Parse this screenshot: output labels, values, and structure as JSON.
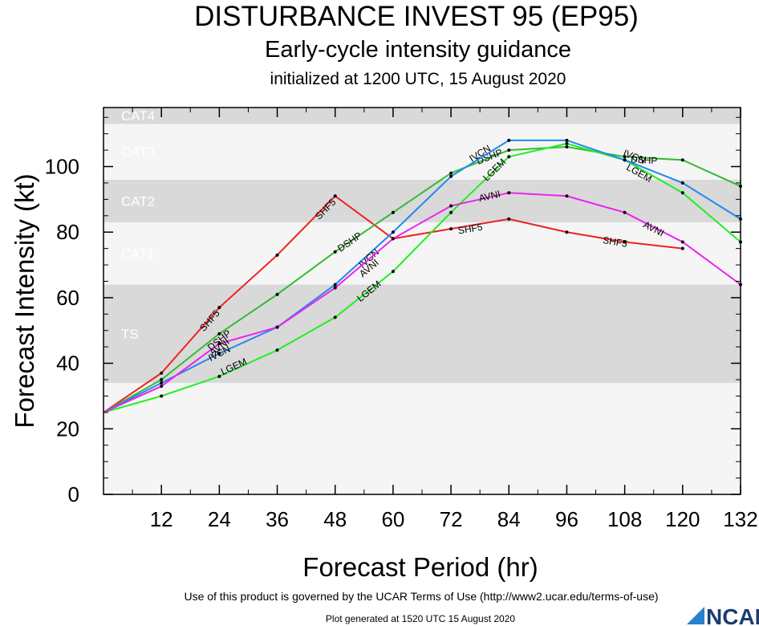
{
  "title": "DISTURBANCE INVEST 95 (EP95)",
  "subtitle": "Early-cycle intensity guidance",
  "subtitle2": "initialized at 1200 UTC, 15 August 2020",
  "footer_terms": "Use of this product is governed by the UCAR Terms of Use (http://www2.ucar.edu/terms-of-use)",
  "footer_generated": "Plot generated at 1520 UTC   15 August 2020",
  "logo_text": "NCAR",
  "chart_data": {
    "type": "line",
    "xlabel": "Forecast Period (hr)",
    "ylabel": "Forecast Intensity (kt)",
    "xlim": [
      0,
      132
    ],
    "ylim": [
      0,
      118
    ],
    "xticks": [
      12,
      24,
      36,
      48,
      60,
      72,
      84,
      96,
      108,
      120,
      132
    ],
    "yticks": [
      0,
      20,
      40,
      60,
      80,
      100
    ],
    "grid": false,
    "bands": [
      {
        "label": "TS",
        "ymin": 34,
        "ymax": 64,
        "color": "#d9d9d9"
      },
      {
        "label": "CAT1",
        "ymin": 64,
        "ymax": 83,
        "color": "#f5f5f5"
      },
      {
        "label": "CAT2",
        "ymin": 83,
        "ymax": 96,
        "color": "#d9d9d9"
      },
      {
        "label": "CAT3",
        "ymin": 96,
        "ymax": 113,
        "color": "#f5f5f5"
      },
      {
        "label": "CAT4",
        "ymin": 113,
        "ymax": 118,
        "color": "#d9d9d9"
      }
    ],
    "below_band_color": "#f5f5f5",
    "series": [
      {
        "name": "SHF5",
        "color": "#ee2222",
        "points": [
          [
            0,
            25
          ],
          [
            12,
            37
          ],
          [
            24,
            57
          ],
          [
            36,
            73
          ],
          [
            48,
            91
          ],
          [
            60,
            78
          ],
          [
            72,
            81
          ],
          [
            84,
            84
          ],
          [
            96,
            80
          ],
          [
            108,
            77
          ],
          [
            120,
            75
          ]
        ],
        "labels": [
          [
            22,
            53
          ],
          [
            46,
            87
          ],
          [
            76,
            81
          ],
          [
            106,
            77
          ]
        ]
      },
      {
        "name": "DSHP",
        "color": "#33bb33",
        "points": [
          [
            0,
            25
          ],
          [
            12,
            35
          ],
          [
            24,
            49
          ],
          [
            36,
            61
          ],
          [
            48,
            74
          ],
          [
            60,
            86
          ],
          [
            72,
            98
          ],
          [
            84,
            105
          ],
          [
            96,
            106
          ],
          [
            108,
            103
          ],
          [
            120,
            102
          ],
          [
            132,
            94
          ]
        ],
        "labels": [
          [
            24,
            47
          ],
          [
            51,
            77
          ],
          [
            80,
            103
          ],
          [
            112,
            102
          ]
        ]
      },
      {
        "name": "LGEM",
        "color": "#22ee22",
        "points": [
          [
            0,
            25
          ],
          [
            12,
            30
          ],
          [
            24,
            36
          ],
          [
            36,
            44
          ],
          [
            48,
            54
          ],
          [
            60,
            68
          ],
          [
            72,
            86
          ],
          [
            84,
            103
          ],
          [
            96,
            107
          ],
          [
            108,
            102
          ],
          [
            120,
            92
          ],
          [
            132,
            77
          ]
        ],
        "labels": [
          [
            27,
            39
          ],
          [
            55,
            62
          ],
          [
            81,
            99
          ],
          [
            111,
            98
          ]
        ]
      },
      {
        "name": "IVCN",
        "color": "#2288ee",
        "points": [
          [
            0,
            25
          ],
          [
            12,
            34
          ],
          [
            24,
            43
          ],
          [
            36,
            51
          ],
          [
            48,
            64
          ],
          [
            60,
            80
          ],
          [
            72,
            97
          ],
          [
            84,
            108
          ],
          [
            96,
            108
          ],
          [
            108,
            102
          ],
          [
            120,
            95
          ],
          [
            132,
            84
          ]
        ],
        "labels": [
          [
            24,
            43
          ],
          [
            55,
            72
          ],
          [
            78,
            104
          ],
          [
            110,
            103
          ]
        ]
      },
      {
        "name": "AVNI",
        "color": "#ee22ee",
        "points": [
          [
            0,
            25
          ],
          [
            12,
            33
          ],
          [
            24,
            46
          ],
          [
            36,
            51
          ],
          [
            48,
            63
          ],
          [
            60,
            78
          ],
          [
            72,
            88
          ],
          [
            84,
            92
          ],
          [
            96,
            91
          ],
          [
            108,
            86
          ],
          [
            120,
            77
          ],
          [
            132,
            64
          ]
        ],
        "labels": [
          [
            24,
            45
          ],
          [
            55,
            69
          ],
          [
            80,
            91
          ],
          [
            114,
            81
          ]
        ]
      }
    ]
  }
}
